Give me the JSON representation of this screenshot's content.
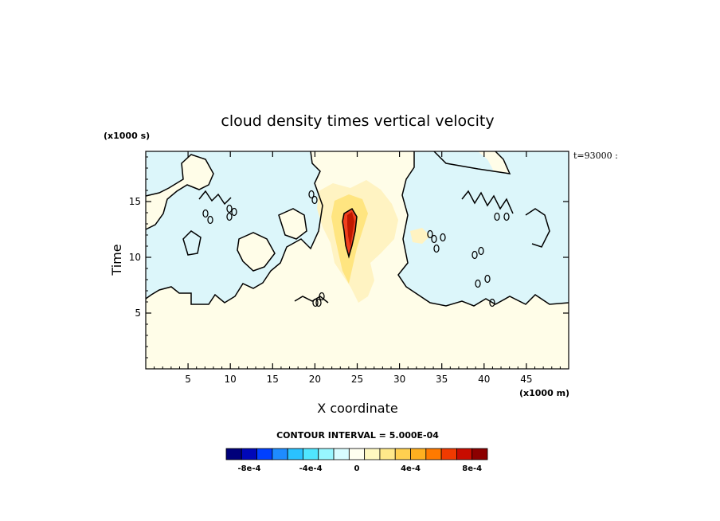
{
  "chart_data": {
    "type": "heatmap",
    "title": "cloud density times vertical velocity",
    "xlabel": "X coordinate",
    "ylabel": "Time",
    "x_unit": "(x1000 m)",
    "y_unit": "(x1000 s)",
    "time_stamp": "t=93000 :",
    "xlim": [
      0,
      50
    ],
    "ylim": [
      0,
      19.5
    ],
    "x_ticks": [
      "5",
      "10",
      "15",
      "20",
      "25",
      "30",
      "35",
      "40",
      "45"
    ],
    "y_ticks": [
      "5",
      "10",
      "15"
    ],
    "contour_interval_text": "CONTOUR INTERVAL = 5.000E-04",
    "colorbar": {
      "labels": [
        "-8e-4",
        "-4e-4",
        "0",
        "4e-4",
        "8e-4"
      ],
      "colors": [
        "#00007a",
        "#0008b8",
        "#0040ff",
        "#1e8cff",
        "#2ac2ff",
        "#50e6ff",
        "#98f6ff",
        "#d8fcff",
        "#fffff0",
        "#fff8c0",
        "#ffe98a",
        "#ffd050",
        "#ffb020",
        "#ff7a00",
        "#f03a00",
        "#c80c00",
        "#8c0000"
      ]
    },
    "regions": {
      "neutral_color": "#fffde8",
      "negative_color": "#dcf6fa",
      "positive_colors": [
        "#fff3c2",
        "#ffe580",
        "#ffb84a",
        "#f0401e",
        "#c01800"
      ]
    }
  }
}
